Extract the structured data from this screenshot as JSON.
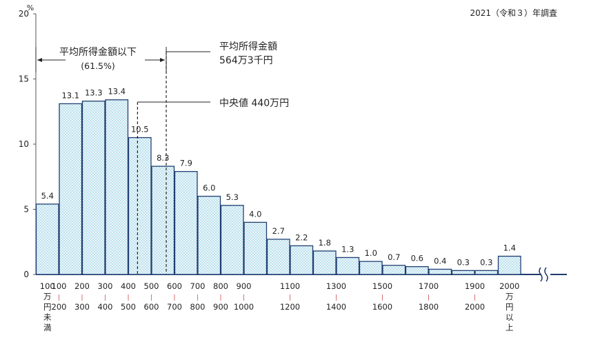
{
  "survey_note": "2021（令和３）年調査",
  "chart_data": {
    "type": "bar",
    "y_unit": "%",
    "ylim": [
      0,
      20
    ],
    "y_ticks": [
      "0",
      "5",
      "10",
      "15",
      "20"
    ],
    "grid": false,
    "values": [
      5.4,
      13.1,
      13.3,
      13.4,
      10.5,
      8.3,
      7.9,
      6.0,
      5.3,
      4.0,
      2.7,
      2.2,
      1.8,
      1.3,
      1.0,
      0.7,
      0.6,
      0.4,
      0.3,
      0.3,
      1.4
    ],
    "value_labels": [
      "5.4",
      "13.1",
      "13.3",
      "13.4",
      "10.5",
      "8.3",
      "7.9",
      "6.0",
      "5.3",
      "4.0",
      "2.7",
      "2.2",
      "1.8",
      "1.3",
      "1.0",
      "0.7",
      "0.6",
      "0.4",
      "0.3",
      "0.3",
      "1.4"
    ],
    "x_tick_labels": [
      [
        "100",
        "万",
        "円",
        "未",
        "満"
      ],
      [
        "100",
        "|",
        "200"
      ],
      [
        "200",
        "|",
        "300"
      ],
      [
        "300",
        "|",
        "400"
      ],
      [
        "400",
        "|",
        "500"
      ],
      [
        "500",
        "|",
        "600"
      ],
      [
        "600",
        "|",
        "700"
      ],
      [
        "700",
        "|",
        "800"
      ],
      [
        "800",
        "|",
        "900"
      ],
      [
        "900",
        "|",
        "1000"
      ],
      [
        "1100",
        "|",
        "1200"
      ],
      [
        "1300",
        "|",
        "1400"
      ],
      [
        "1500",
        "|",
        "1600"
      ],
      [
        "1700",
        "|",
        "1800"
      ],
      [
        "1900",
        "|",
        "2000"
      ],
      [
        "2000",
        "万",
        "円",
        "以",
        "上"
      ]
    ],
    "annotations": {
      "below_average_label": "平均所得金額以下",
      "below_average_pct": "(61.5%)",
      "average_label": "平均所得金額",
      "average_value": "564万3千円",
      "average_amount": 564.3,
      "median_label": "中央値 440万円",
      "median_amount": 440
    }
  }
}
